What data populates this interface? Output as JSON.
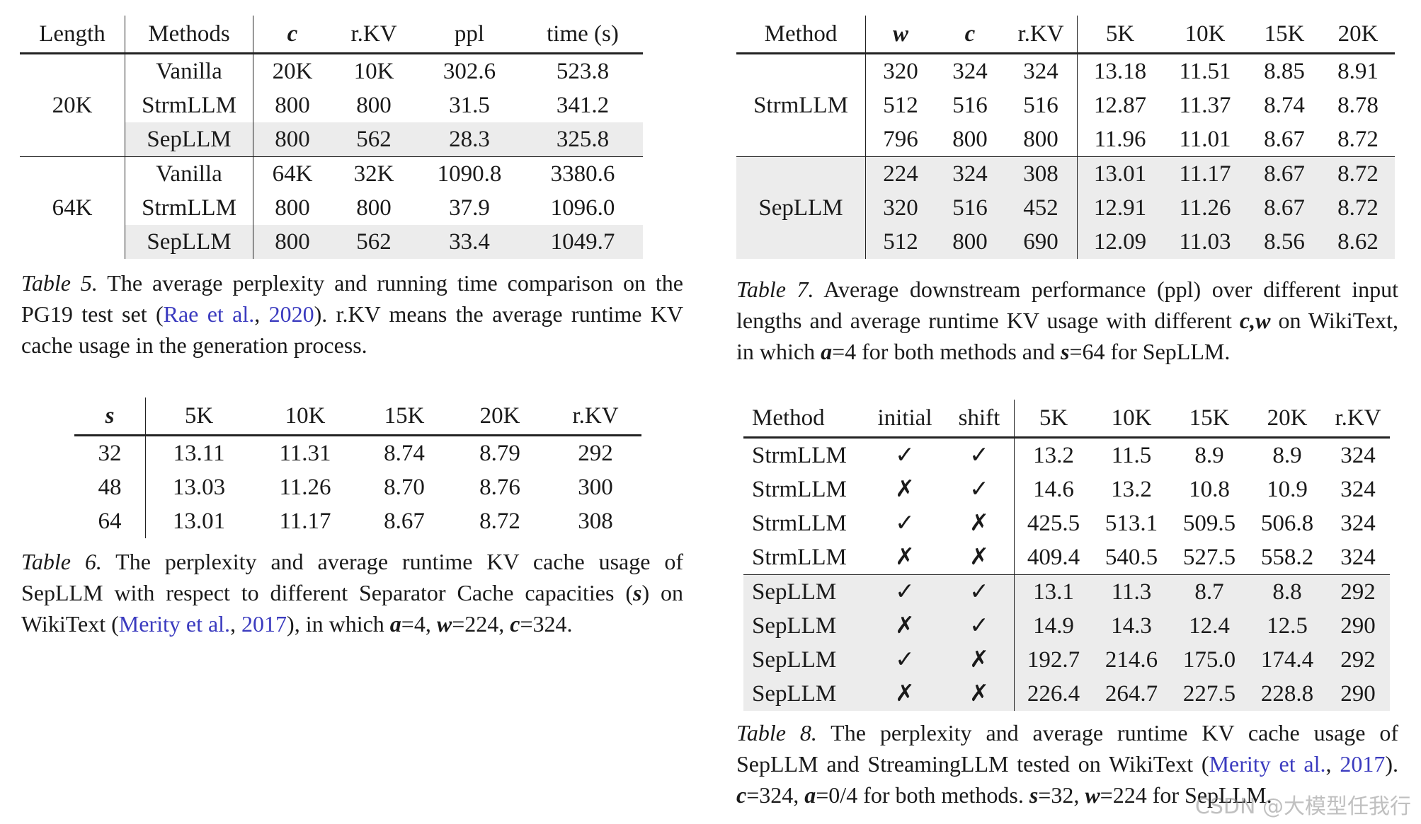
{
  "table5": {
    "headers": [
      "Length",
      "Methods",
      "c",
      "r.KV",
      "ppl",
      "time (s)"
    ],
    "groups": [
      {
        "length": "20K",
        "rows": [
          {
            "method": "Vanilla",
            "c": "20K",
            "rkv": "10K",
            "ppl": "302.6",
            "time": "523.8"
          },
          {
            "method": "StrmLLM",
            "c": "800",
            "rkv": "800",
            "ppl": "31.5",
            "time": "341.2"
          },
          {
            "method": "SepLLM",
            "c": "800",
            "rkv": "562",
            "ppl": "28.3",
            "time": "325.8"
          }
        ]
      },
      {
        "length": "64K",
        "rows": [
          {
            "method": "Vanilla",
            "c": "64K",
            "rkv": "32K",
            "ppl": "1090.8",
            "time": "3380.6"
          },
          {
            "method": "StrmLLM",
            "c": "800",
            "rkv": "800",
            "ppl": "37.9",
            "time": "1096.0"
          },
          {
            "method": "SepLLM",
            "c": "800",
            "rkv": "562",
            "ppl": "33.4",
            "time": "1049.7"
          }
        ]
      }
    ],
    "caption": {
      "label": "Table 5.",
      "text_a": " The average perplexity and running time comparison on the PG19 test set (",
      "cite_author": "Rae et al.",
      "cite_sep": ", ",
      "cite_year": "2020",
      "text_b": ").  r.KV means the average runtime KV cache usage in the generation process."
    }
  },
  "table6": {
    "headers": [
      "s",
      "5K",
      "10K",
      "15K",
      "20K",
      "r.KV"
    ],
    "rows": [
      [
        "32",
        "13.11",
        "11.31",
        "8.74",
        "8.79",
        "292"
      ],
      [
        "48",
        "13.03",
        "11.26",
        "8.70",
        "8.76",
        "300"
      ],
      [
        "64",
        "13.01",
        "11.17",
        "8.67",
        "8.72",
        "308"
      ]
    ],
    "caption": {
      "label": "Table 6.",
      "text_a": " The perplexity and average runtime KV cache usage of SepLLM with respect to different Separator Cache capacities (",
      "sym_s": "s",
      "text_b": ") on WikiText (",
      "cite_author": "Merity et al.",
      "cite_sep": ", ",
      "cite_year": "2017",
      "text_c": "), in which ",
      "sym_a": "a",
      "text_d": "=4, ",
      "sym_w": "w",
      "text_e": "=224, ",
      "sym_c": "c",
      "text_f": "=324."
    }
  },
  "table7": {
    "headers": [
      "Method",
      "w",
      "c",
      "r.KV",
      "5K",
      "10K",
      "15K",
      "20K"
    ],
    "groups": [
      {
        "method": "StrmLLM",
        "rows": [
          [
            "320",
            "324",
            "324",
            "13.18",
            "11.51",
            "8.85",
            "8.91"
          ],
          [
            "512",
            "516",
            "516",
            "12.87",
            "11.37",
            "8.74",
            "8.78"
          ],
          [
            "796",
            "800",
            "800",
            "11.96",
            "11.01",
            "8.67",
            "8.72"
          ]
        ]
      },
      {
        "method": "SepLLM",
        "rows": [
          [
            "224",
            "324",
            "308",
            "13.01",
            "11.17",
            "8.67",
            "8.72"
          ],
          [
            "320",
            "516",
            "452",
            "12.91",
            "11.26",
            "8.67",
            "8.72"
          ],
          [
            "512",
            "800",
            "690",
            "12.09",
            "11.03",
            "8.56",
            "8.62"
          ]
        ]
      }
    ],
    "caption": {
      "label": "Table 7.",
      "text_a": " Average downstream performance (ppl) over different input lengths and average runtime KV usage with different ",
      "sym_cw": "c,w",
      "text_b": " on WikiText, in which ",
      "sym_a": "a",
      "text_c": "=4 for both methods and ",
      "sym_s": "s",
      "text_d": "=64 for SepLLM."
    }
  },
  "table8": {
    "headers": [
      "Method",
      "initial",
      "shift",
      "5K",
      "10K",
      "15K",
      "20K",
      "r.KV"
    ],
    "rows": [
      [
        "StrmLLM",
        "✓",
        "✓",
        "13.2",
        "11.5",
        "8.9",
        "8.9",
        "324"
      ],
      [
        "StrmLLM",
        "✗",
        "✓",
        "14.6",
        "13.2",
        "10.8",
        "10.9",
        "324"
      ],
      [
        "StrmLLM",
        "✓",
        "✗",
        "425.5",
        "513.1",
        "509.5",
        "506.8",
        "324"
      ],
      [
        "StrmLLM",
        "✗",
        "✗",
        "409.4",
        "540.5",
        "527.5",
        "558.2",
        "324"
      ],
      [
        "SepLLM",
        "✓",
        "✓",
        "13.1",
        "11.3",
        "8.7",
        "8.8",
        "292"
      ],
      [
        "SepLLM",
        "✗",
        "✓",
        "14.9",
        "14.3",
        "12.4",
        "12.5",
        "290"
      ],
      [
        "SepLLM",
        "✓",
        "✗",
        "192.7",
        "214.6",
        "175.0",
        "174.4",
        "292"
      ],
      [
        "SepLLM",
        "✗",
        "✗",
        "226.4",
        "264.7",
        "227.5",
        "228.8",
        "290"
      ]
    ],
    "caption": {
      "label": "Table 8.",
      "text_a": "  The perplexity and average runtime KV cache usage of SepLLM and StreamingLLM tested on WikiText (",
      "cite_author": "Merity et al.",
      "cite_sep": ", ",
      "cite_year": "2017",
      "text_b": "). ",
      "sym_c": "c",
      "text_c": "=324, ",
      "sym_a": "a",
      "text_d": "=0/4 for both methods. ",
      "sym_s": "s",
      "text_e": "=32, ",
      "sym_w": "w",
      "text_f": "=224 for SepLLM."
    }
  },
  "watermark": "CSDN @大模型任我行"
}
